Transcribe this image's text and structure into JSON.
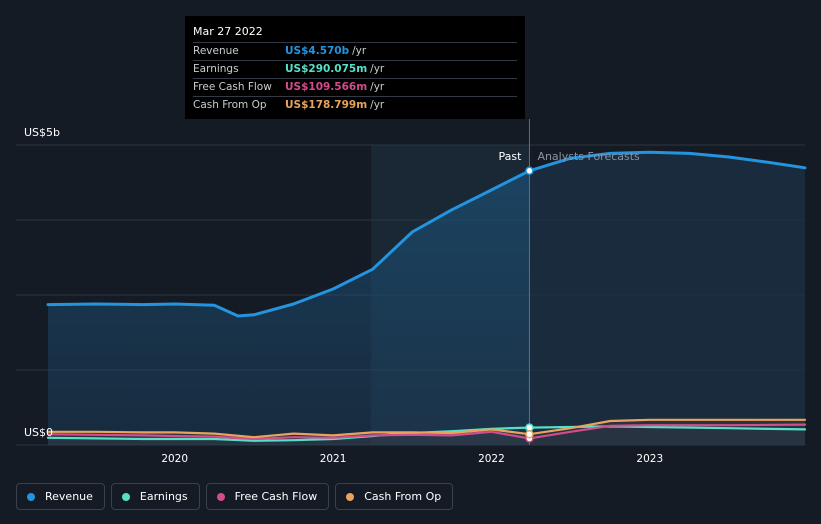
{
  "chart_data": {
    "type": "line",
    "y_label_top": "US$5b",
    "y_label_bottom": "US$0",
    "ylim": [
      0,
      5
    ],
    "xlim": [
      2019.2,
      2023.98
    ],
    "x_ticks": [
      {
        "label": "2020",
        "value": 2020
      },
      {
        "label": "2021",
        "value": 2021
      },
      {
        "label": "2022",
        "value": 2022
      },
      {
        "label": "2023",
        "value": 2023
      }
    ],
    "divider_value": 2022.24,
    "highlight_start": 2021.24,
    "past_label": "Past",
    "forecast_label": "Analysts Forecasts",
    "series": [
      {
        "name": "Revenue",
        "color": "#2394df",
        "fill": true,
        "points": [
          [
            2019.2,
            2.34
          ],
          [
            2019.5,
            2.35
          ],
          [
            2019.8,
            2.34
          ],
          [
            2020.0,
            2.35
          ],
          [
            2020.25,
            2.33
          ],
          [
            2020.4,
            2.15
          ],
          [
            2020.5,
            2.17
          ],
          [
            2020.75,
            2.35
          ],
          [
            2021.0,
            2.6
          ],
          [
            2021.25,
            2.93
          ],
          [
            2021.5,
            3.55
          ],
          [
            2021.75,
            3.92
          ],
          [
            2022.0,
            4.25
          ],
          [
            2022.24,
            4.57
          ],
          [
            2022.5,
            4.78
          ],
          [
            2022.75,
            4.86
          ],
          [
            2023.0,
            4.88
          ],
          [
            2023.25,
            4.86
          ],
          [
            2023.5,
            4.8
          ],
          [
            2023.75,
            4.71
          ],
          [
            2023.98,
            4.62
          ]
        ]
      },
      {
        "name": "Earnings",
        "color": "#58e0c7",
        "fill": false,
        "points": [
          [
            2019.2,
            0.12
          ],
          [
            2019.5,
            0.11
          ],
          [
            2019.8,
            0.1
          ],
          [
            2020.0,
            0.1
          ],
          [
            2020.25,
            0.1
          ],
          [
            2020.5,
            0.07
          ],
          [
            2020.75,
            0.08
          ],
          [
            2021.0,
            0.1
          ],
          [
            2021.25,
            0.15
          ],
          [
            2021.5,
            0.2
          ],
          [
            2021.75,
            0.23
          ],
          [
            2022.0,
            0.27
          ],
          [
            2022.24,
            0.29
          ],
          [
            2022.5,
            0.3
          ],
          [
            2022.75,
            0.31
          ],
          [
            2023.0,
            0.3
          ],
          [
            2023.5,
            0.28
          ],
          [
            2023.98,
            0.26
          ]
        ]
      },
      {
        "name": "Free Cash Flow",
        "color": "#d34c8c",
        "fill": false,
        "points": [
          [
            2019.2,
            0.18
          ],
          [
            2019.5,
            0.17
          ],
          [
            2019.8,
            0.16
          ],
          [
            2020.0,
            0.15
          ],
          [
            2020.25,
            0.14
          ],
          [
            2020.5,
            0.1
          ],
          [
            2020.75,
            0.13
          ],
          [
            2021.0,
            0.12
          ],
          [
            2021.25,
            0.16
          ],
          [
            2021.5,
            0.17
          ],
          [
            2021.75,
            0.16
          ],
          [
            2022.0,
            0.22
          ],
          [
            2022.24,
            0.11
          ],
          [
            2022.5,
            0.22
          ],
          [
            2022.75,
            0.32
          ],
          [
            2023.0,
            0.33
          ],
          [
            2023.5,
            0.33
          ],
          [
            2023.98,
            0.34
          ]
        ]
      },
      {
        "name": "Cash From Op",
        "color": "#e8a45d",
        "fill": false,
        "points": [
          [
            2019.2,
            0.22
          ],
          [
            2019.5,
            0.22
          ],
          [
            2019.8,
            0.21
          ],
          [
            2020.0,
            0.21
          ],
          [
            2020.25,
            0.19
          ],
          [
            2020.5,
            0.13
          ],
          [
            2020.75,
            0.19
          ],
          [
            2021.0,
            0.16
          ],
          [
            2021.25,
            0.21
          ],
          [
            2021.5,
            0.21
          ],
          [
            2021.75,
            0.2
          ],
          [
            2022.0,
            0.26
          ],
          [
            2022.24,
            0.18
          ],
          [
            2022.5,
            0.28
          ],
          [
            2022.75,
            0.4
          ],
          [
            2023.0,
            0.42
          ],
          [
            2023.5,
            0.42
          ],
          [
            2023.98,
            0.42
          ]
        ]
      }
    ]
  },
  "tooltip": {
    "date": "Mar 27 2022",
    "rows": [
      {
        "label": "Revenue",
        "value": "US$4.570b",
        "unit": "/yr",
        "color": "#2394df"
      },
      {
        "label": "Earnings",
        "value": "US$290.075m",
        "unit": "/yr",
        "color": "#58e0c7"
      },
      {
        "label": "Free Cash Flow",
        "value": "US$109.566m",
        "unit": "/yr",
        "color": "#d34c8c"
      },
      {
        "label": "Cash From Op",
        "value": "US$178.799m",
        "unit": "/yr",
        "color": "#e8a45d"
      }
    ]
  },
  "legend": [
    {
      "label": "Revenue",
      "color": "#2394df"
    },
    {
      "label": "Earnings",
      "color": "#58e0c7"
    },
    {
      "label": "Free Cash Flow",
      "color": "#d34c8c"
    },
    {
      "label": "Cash From Op",
      "color": "#e8a45d"
    }
  ]
}
